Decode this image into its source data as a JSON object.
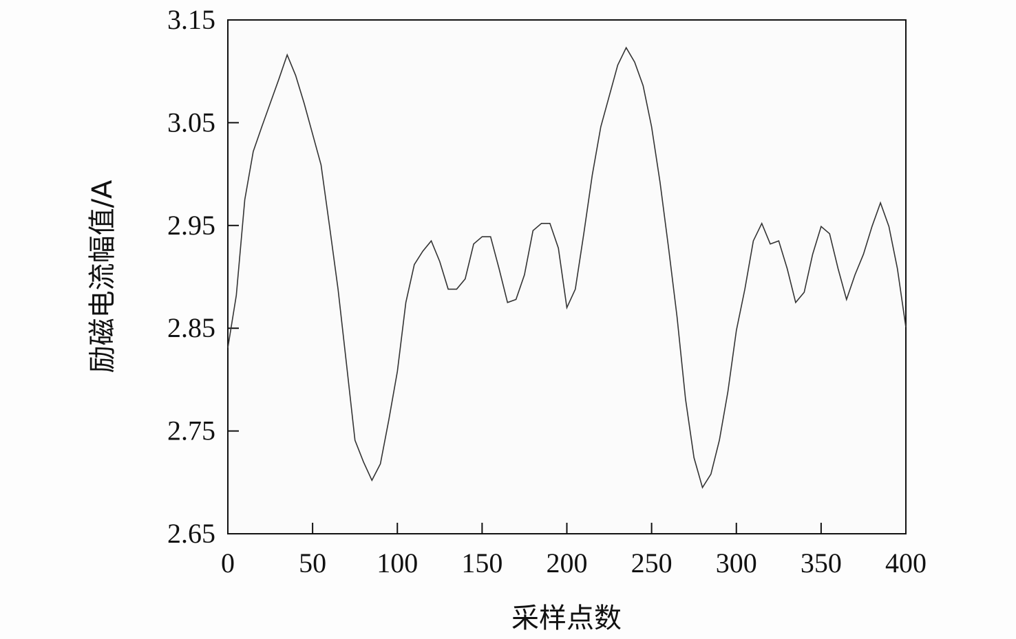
{
  "chart_data": {
    "type": "line",
    "title": "",
    "xlabel": "采样点数",
    "ylabel": "励磁电流幅值/A",
    "xlim": [
      0,
      400
    ],
    "ylim": [
      2.65,
      3.15
    ],
    "xticks": [
      0,
      50,
      100,
      150,
      200,
      250,
      300,
      350,
      400
    ],
    "xtick_labels": [
      "0",
      "50",
      "100",
      "150",
      "200",
      "250",
      "300",
      "350",
      "400"
    ],
    "yticks": [
      2.65,
      2.75,
      2.85,
      2.95,
      3.05,
      3.15
    ],
    "ytick_labels": [
      "2.65",
      "2.75",
      "2.85",
      "2.95",
      "3.05",
      "3.15"
    ],
    "grid": false,
    "line_color": "#333333",
    "series": [
      {
        "x": [
          0,
          5,
          10,
          15,
          20,
          25,
          30,
          35,
          40,
          45,
          50,
          55,
          60,
          65,
          70,
          75,
          80,
          85,
          90,
          95,
          100,
          105,
          110,
          115,
          120,
          125,
          130,
          135,
          140,
          145,
          150,
          155,
          160,
          165,
          170,
          175,
          180,
          185,
          190,
          195,
          200,
          205,
          210,
          215,
          220,
          225,
          230,
          235,
          240,
          245,
          250,
          255,
          260,
          265,
          270,
          275,
          280,
          285,
          290,
          295,
          300,
          305,
          310,
          315,
          320,
          325,
          330,
          335,
          340,
          345,
          350,
          355,
          360,
          365,
          370,
          375,
          380,
          385,
          390,
          395,
          400
        ],
        "y": [
          2.831,
          2.882,
          2.975,
          3.022,
          3.046,
          3.069,
          3.092,
          3.116,
          3.096,
          3.069,
          3.039,
          3.009,
          2.949,
          2.888,
          2.815,
          2.741,
          2.72,
          2.702,
          2.718,
          2.761,
          2.808,
          2.875,
          2.912,
          2.925,
          2.935,
          2.915,
          2.888,
          2.888,
          2.898,
          2.932,
          2.939,
          2.939,
          2.908,
          2.875,
          2.878,
          2.902,
          2.945,
          2.952,
          2.952,
          2.928,
          2.87,
          2.888,
          2.942,
          2.999,
          3.046,
          3.076,
          3.106,
          3.123,
          3.109,
          3.086,
          3.046,
          2.992,
          2.928,
          2.861,
          2.781,
          2.724,
          2.695,
          2.708,
          2.741,
          2.788,
          2.848,
          2.888,
          2.935,
          2.952,
          2.932,
          2.935,
          2.908,
          2.875,
          2.885,
          2.922,
          2.949,
          2.942,
          2.908,
          2.878,
          2.902,
          2.922,
          2.949,
          2.972,
          2.949,
          2.908,
          2.851
        ]
      }
    ]
  }
}
